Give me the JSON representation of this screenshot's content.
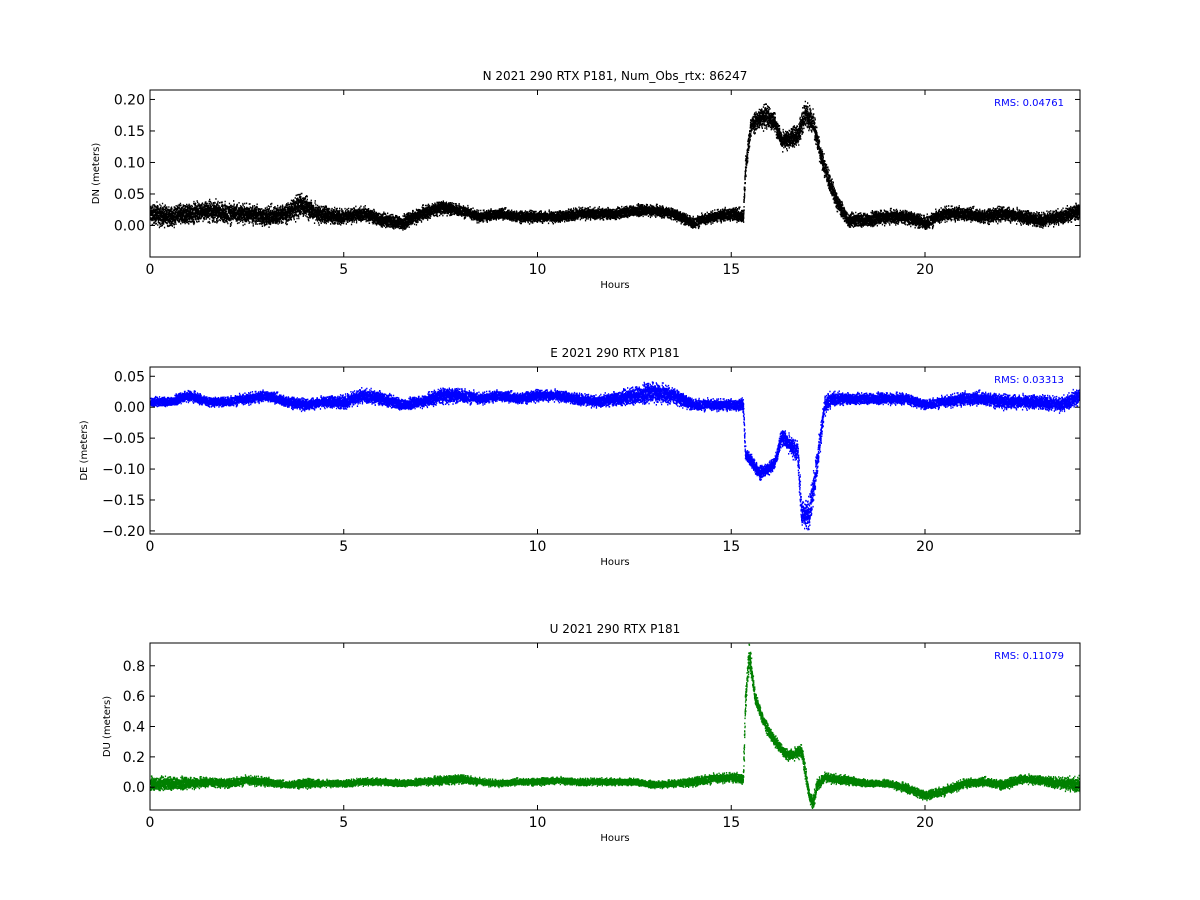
{
  "chart_data": [
    {
      "type": "scatter",
      "title": "N 2021 290 RTX  P181, Num_Obs_rtx: 86247",
      "xlabel": "Hours",
      "ylabel": "DN (meters)",
      "xlim": [
        0,
        24
      ],
      "ylim": [
        -0.05,
        0.215
      ],
      "xticks": [
        0,
        5,
        10,
        15,
        20
      ],
      "yticks": [
        0.0,
        0.05,
        0.1,
        0.15,
        0.2
      ],
      "ytick_labels": [
        "0.00",
        "0.05",
        "0.10",
        "0.15",
        "0.20"
      ],
      "rms_label": "RMS:  0.04761",
      "rms_color": "#0000ff",
      "series": [
        {
          "color": "#000000",
          "x": [
            0,
            0.5,
            1,
            1.5,
            2,
            2.5,
            3,
            3.5,
            3.9,
            4.3,
            5,
            5.5,
            6,
            6.5,
            7,
            7.5,
            8,
            8.5,
            9,
            9.5,
            10,
            10.5,
            11,
            11.5,
            12,
            12.5,
            13,
            13.5,
            14,
            14.5,
            15,
            15.3,
            15.35,
            15.5,
            15.7,
            15.9,
            16.1,
            16.3,
            16.5,
            16.7,
            16.9,
            17.1,
            17.3,
            17.5,
            17.7,
            18,
            18.5,
            19,
            19.5,
            20,
            20.5,
            21,
            21.5,
            22,
            22.5,
            23,
            23.5,
            24
          ],
          "y": [
            0.02,
            0.015,
            0.02,
            0.025,
            0.02,
            0.02,
            0.015,
            0.02,
            0.035,
            0.02,
            0.015,
            0.02,
            0.01,
            0.005,
            0.02,
            0.03,
            0.025,
            0.015,
            0.02,
            0.015,
            0.015,
            0.015,
            0.02,
            0.02,
            0.02,
            0.025,
            0.025,
            0.02,
            0.005,
            0.015,
            0.02,
            0.015,
            0.09,
            0.16,
            0.17,
            0.175,
            0.165,
            0.135,
            0.14,
            0.145,
            0.18,
            0.165,
            0.11,
            0.075,
            0.04,
            0.01,
            0.01,
            0.015,
            0.015,
            0.005,
            0.02,
            0.02,
            0.015,
            0.02,
            0.015,
            0.01,
            0.015,
            0.025
          ],
          "spread": [
            0.022,
            0.022,
            0.022,
            0.022,
            0.022,
            0.02,
            0.022,
            0.02,
            0.025,
            0.02,
            0.015,
            0.015,
            0.015,
            0.015,
            0.015,
            0.015,
            0.012,
            0.012,
            0.012,
            0.012,
            0.012,
            0.012,
            0.012,
            0.012,
            0.012,
            0.012,
            0.012,
            0.012,
            0.012,
            0.012,
            0.015,
            0.015,
            0.025,
            0.02,
            0.02,
            0.025,
            0.02,
            0.02,
            0.02,
            0.025,
            0.025,
            0.025,
            0.02,
            0.02,
            0.018,
            0.015,
            0.015,
            0.015,
            0.015,
            0.015,
            0.015,
            0.015,
            0.015,
            0.015,
            0.015,
            0.015,
            0.015,
            0.018
          ]
        }
      ]
    },
    {
      "type": "scatter",
      "title": "E 2021 290 RTX  P181",
      "xlabel": "Hours",
      "ylabel": "DE (meters)",
      "xlim": [
        0,
        24
      ],
      "ylim": [
        -0.205,
        0.065
      ],
      "xticks": [
        0,
        5,
        10,
        15,
        20
      ],
      "yticks": [
        -0.2,
        -0.15,
        -0.1,
        -0.05,
        0.0,
        0.05
      ],
      "ytick_labels": [
        "−0.20",
        "−0.15",
        "−0.10",
        "−0.05",
        "0.00",
        "0.05"
      ],
      "rms_label": "RMS:  0.03313",
      "rms_color": "#0000ff",
      "series": [
        {
          "color": "#0000ff",
          "x": [
            0,
            0.5,
            1,
            1.5,
            2,
            2.5,
            3,
            3.5,
            4,
            4.5,
            5,
            5.5,
            6,
            6.5,
            7,
            7.5,
            8,
            8.5,
            9,
            9.5,
            10,
            10.5,
            11,
            11.5,
            12,
            12.5,
            13,
            13.5,
            14,
            14.5,
            15,
            15.3,
            15.35,
            15.5,
            15.7,
            15.9,
            16.1,
            16.3,
            16.5,
            16.7,
            16.8,
            17.0,
            17.2,
            17.4,
            17.6,
            18,
            18.5,
            19,
            19.5,
            20,
            20.5,
            21,
            21.5,
            22,
            22.5,
            23,
            23.5,
            24
          ],
          "y": [
            0.01,
            0.01,
            0.02,
            0.01,
            0.01,
            0.015,
            0.02,
            0.01,
            0.005,
            0.01,
            0.01,
            0.02,
            0.015,
            0.005,
            0.01,
            0.02,
            0.02,
            0.015,
            0.02,
            0.015,
            0.02,
            0.02,
            0.015,
            0.01,
            0.015,
            0.02,
            0.025,
            0.02,
            0.005,
            0.005,
            0.005,
            0.005,
            -0.075,
            -0.085,
            -0.105,
            -0.1,
            -0.09,
            -0.045,
            -0.06,
            -0.07,
            -0.17,
            -0.17,
            -0.09,
            0.005,
            0.015,
            0.015,
            0.015,
            0.015,
            0.015,
            0.005,
            0.01,
            0.015,
            0.015,
            0.01,
            0.01,
            0.01,
            0.005,
            0.02
          ],
          "spread": [
            0.01,
            0.01,
            0.012,
            0.01,
            0.01,
            0.012,
            0.012,
            0.012,
            0.012,
            0.012,
            0.015,
            0.015,
            0.015,
            0.012,
            0.012,
            0.018,
            0.015,
            0.012,
            0.012,
            0.012,
            0.012,
            0.012,
            0.012,
            0.012,
            0.015,
            0.02,
            0.022,
            0.018,
            0.012,
            0.012,
            0.012,
            0.015,
            0.015,
            0.015,
            0.015,
            0.012,
            0.012,
            0.02,
            0.02,
            0.025,
            0.03,
            0.035,
            0.03,
            0.02,
            0.015,
            0.012,
            0.012,
            0.012,
            0.012,
            0.01,
            0.012,
            0.015,
            0.015,
            0.015,
            0.015,
            0.015,
            0.015,
            0.018
          ]
        }
      ]
    },
    {
      "type": "scatter",
      "title": "U 2021 290 RTX  P181",
      "xlabel": "Hours",
      "ylabel": "DU (meters)",
      "xlim": [
        0,
        24
      ],
      "ylim": [
        -0.15,
        0.95
      ],
      "xticks": [
        0,
        5,
        10,
        15,
        20
      ],
      "yticks": [
        0.0,
        0.2,
        0.4,
        0.6,
        0.8
      ],
      "ytick_labels": [
        "0.0",
        "0.2",
        "0.4",
        "0.6",
        "0.8"
      ],
      "rms_label": "RMS:  0.11079",
      "rms_color": "#0000ff",
      "series": [
        {
          "color": "#008000",
          "x": [
            0,
            0.5,
            1,
            1.5,
            2,
            2.5,
            3,
            3.5,
            4,
            4.5,
            5,
            5.5,
            6,
            6.5,
            7,
            7.5,
            8,
            8.5,
            9,
            9.5,
            10,
            10.5,
            11,
            11.5,
            12,
            12.5,
            13,
            13.5,
            14,
            14.5,
            15,
            15.3,
            15.35,
            15.45,
            15.6,
            15.8,
            16,
            16.2,
            16.4,
            16.6,
            16.8,
            17.0,
            17.1,
            17.2,
            17.4,
            17.6,
            18,
            18.5,
            19,
            19.5,
            20,
            20.5,
            21,
            21.5,
            22,
            22.5,
            23,
            23.5,
            24
          ],
          "y": [
            0.03,
            0.03,
            0.03,
            0.04,
            0.03,
            0.05,
            0.04,
            0.02,
            0.03,
            0.03,
            0.03,
            0.04,
            0.04,
            0.03,
            0.04,
            0.05,
            0.06,
            0.04,
            0.03,
            0.04,
            0.04,
            0.05,
            0.04,
            0.04,
            0.04,
            0.04,
            0.02,
            0.03,
            0.04,
            0.06,
            0.07,
            0.06,
            0.55,
            0.88,
            0.6,
            0.45,
            0.35,
            0.28,
            0.22,
            0.22,
            0.25,
            -0.05,
            -0.1,
            0.02,
            0.07,
            0.06,
            0.05,
            0.03,
            0.03,
            0.0,
            -0.05,
            -0.02,
            0.03,
            0.04,
            0.02,
            0.06,
            0.05,
            0.03,
            0.02
          ],
          "spread": [
            0.06,
            0.06,
            0.05,
            0.04,
            0.04,
            0.04,
            0.04,
            0.03,
            0.04,
            0.03,
            0.03,
            0.03,
            0.03,
            0.03,
            0.03,
            0.04,
            0.04,
            0.03,
            0.03,
            0.03,
            0.03,
            0.03,
            0.03,
            0.03,
            0.03,
            0.03,
            0.03,
            0.03,
            0.04,
            0.04,
            0.04,
            0.05,
            0.1,
            0.12,
            0.06,
            0.05,
            0.05,
            0.04,
            0.05,
            0.05,
            0.06,
            0.06,
            0.06,
            0.05,
            0.04,
            0.04,
            0.04,
            0.03,
            0.03,
            0.04,
            0.04,
            0.04,
            0.04,
            0.04,
            0.04,
            0.04,
            0.04,
            0.05,
            0.07
          ]
        }
      ]
    }
  ]
}
